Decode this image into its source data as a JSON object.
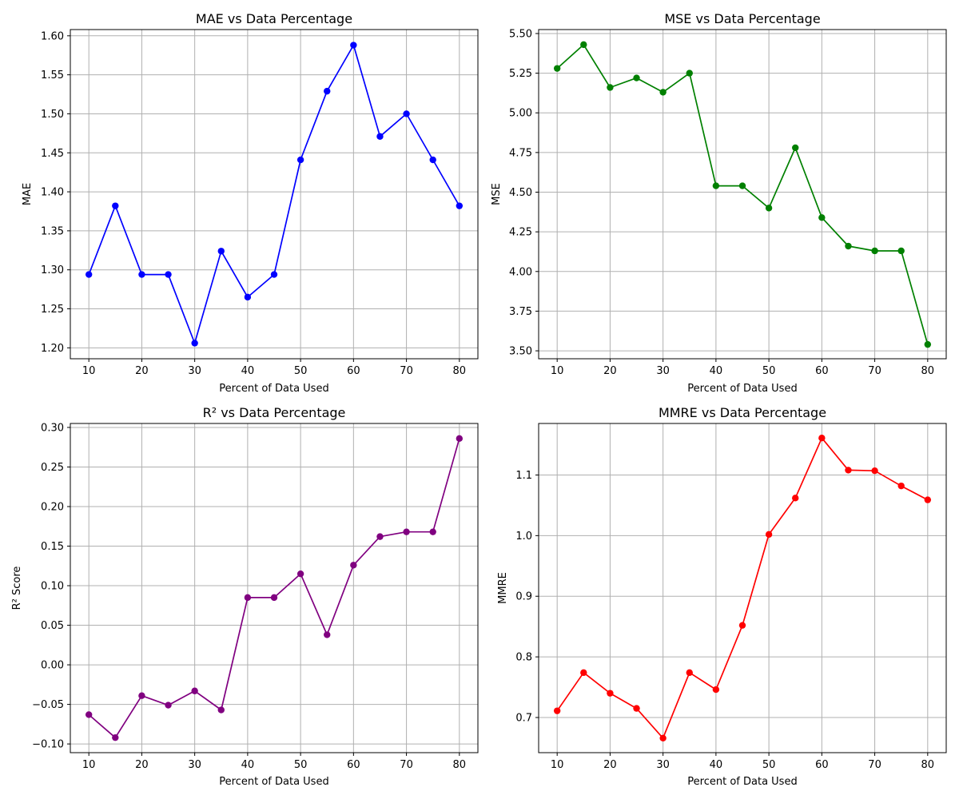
{
  "chart_data": [
    {
      "type": "line",
      "title": "MAE vs Data Percentage",
      "xlabel": "Percent of Data Used",
      "ylabel": "MAE",
      "color": "#0000ff",
      "xlim": [
        6.5,
        83.5
      ],
      "ylim": [
        1.186,
        1.608
      ],
      "grid": true,
      "xticks": [
        10,
        20,
        30,
        40,
        50,
        60,
        70,
        80
      ],
      "yticks": [
        1.2,
        1.25,
        1.3,
        1.35,
        1.4,
        1.45,
        1.5,
        1.55,
        1.6
      ],
      "ytick_labels": [
        "1.20",
        "1.25",
        "1.30",
        "1.35",
        "1.40",
        "1.45",
        "1.50",
        "1.55",
        "1.60"
      ],
      "x": [
        10,
        15,
        20,
        25,
        30,
        35,
        40,
        45,
        50,
        55,
        60,
        65,
        70,
        75,
        80
      ],
      "values": [
        1.294,
        1.382,
        1.294,
        1.294,
        1.206,
        1.324,
        1.265,
        1.294,
        1.441,
        1.529,
        1.588,
        1.471,
        1.5,
        1.441,
        1.382
      ]
    },
    {
      "type": "line",
      "title": "MSE vs Data Percentage",
      "xlabel": "Percent of Data Used",
      "ylabel": "MSE",
      "color": "#008000",
      "xlim": [
        6.5,
        83.5
      ],
      "ylim": [
        3.45,
        5.525
      ],
      "grid": true,
      "xticks": [
        10,
        20,
        30,
        40,
        50,
        60,
        70,
        80
      ],
      "yticks": [
        3.5,
        3.75,
        4.0,
        4.25,
        4.5,
        4.75,
        5.0,
        5.25,
        5.5
      ],
      "ytick_labels": [
        "3.50",
        "3.75",
        "4.00",
        "4.25",
        "4.50",
        "4.75",
        "5.00",
        "5.25",
        "5.50"
      ],
      "x": [
        10,
        15,
        20,
        25,
        30,
        35,
        40,
        45,
        50,
        55,
        60,
        65,
        70,
        75,
        80
      ],
      "values": [
        5.28,
        5.43,
        5.16,
        5.22,
        5.13,
        5.25,
        4.54,
        4.54,
        4.4,
        4.78,
        4.34,
        4.16,
        4.13,
        4.13,
        3.54
      ]
    },
    {
      "type": "line",
      "title": "R² vs Data Percentage",
      "xlabel": "Percent of Data Used",
      "ylabel": "R² Score",
      "color": "#800080",
      "xlim": [
        6.5,
        83.5
      ],
      "ylim": [
        -0.111,
        0.305
      ],
      "grid": true,
      "xticks": [
        10,
        20,
        30,
        40,
        50,
        60,
        70,
        80
      ],
      "yticks": [
        -0.1,
        -0.05,
        0.0,
        0.05,
        0.1,
        0.15,
        0.2,
        0.25,
        0.3
      ],
      "ytick_labels": [
        "−0.10",
        "−0.05",
        "0.00",
        "0.05",
        "0.10",
        "0.15",
        "0.20",
        "0.25",
        "0.30"
      ],
      "x": [
        10,
        15,
        20,
        25,
        30,
        35,
        40,
        45,
        50,
        55,
        60,
        65,
        70,
        75,
        80
      ],
      "values": [
        -0.063,
        -0.092,
        -0.039,
        -0.051,
        -0.033,
        -0.057,
        0.085,
        0.085,
        0.115,
        0.038,
        0.126,
        0.162,
        0.168,
        0.168,
        0.286
      ]
    },
    {
      "type": "line",
      "title": "MMRE vs Data Percentage",
      "xlabel": "Percent of Data Used",
      "ylabel": "MMRE",
      "color": "#ff0000",
      "xlim": [
        6.5,
        83.5
      ],
      "ylim": [
        0.642,
        1.185
      ],
      "grid": true,
      "xticks": [
        10,
        20,
        30,
        40,
        50,
        60,
        70,
        80
      ],
      "yticks": [
        0.7,
        0.8,
        0.9,
        1.0,
        1.1
      ],
      "ytick_labels": [
        "0.7",
        "0.8",
        "0.9",
        "1.0",
        "1.1"
      ],
      "x": [
        10,
        15,
        20,
        25,
        30,
        35,
        40,
        45,
        50,
        55,
        60,
        65,
        70,
        75,
        80
      ],
      "values": [
        0.711,
        0.774,
        0.74,
        0.715,
        0.666,
        0.774,
        0.746,
        0.852,
        1.002,
        1.062,
        1.161,
        1.108,
        1.107,
        1.082,
        1.059
      ]
    }
  ]
}
